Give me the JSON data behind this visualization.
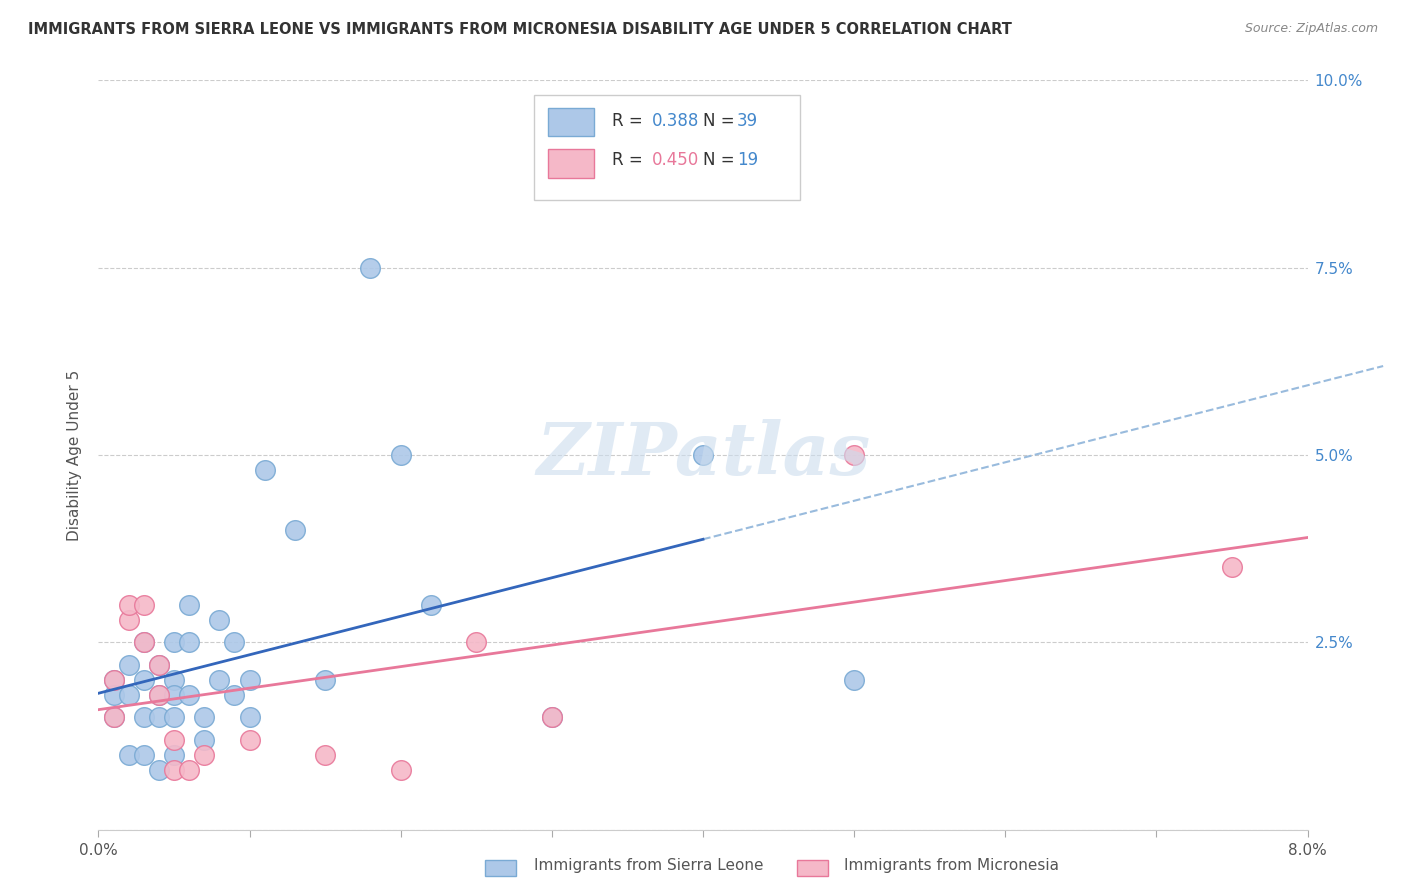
{
  "title": "IMMIGRANTS FROM SIERRA LEONE VS IMMIGRANTS FROM MICRONESIA DISABILITY AGE UNDER 5 CORRELATION CHART",
  "source": "Source: ZipAtlas.com",
  "ylabel": "Disability Age Under 5",
  "xlim": [
    0,
    0.08
  ],
  "ylim": [
    0,
    0.1
  ],
  "xticks": [
    0.0,
    0.01,
    0.02,
    0.03,
    0.04,
    0.05,
    0.06,
    0.07,
    0.08
  ],
  "yticks": [
    0.0,
    0.025,
    0.05,
    0.075,
    0.1
  ],
  "xticklabels": [
    "0.0%",
    "",
    "",
    "",
    "",
    "",
    "",
    "",
    "8.0%"
  ],
  "yticklabels": [
    "",
    "2.5%",
    "5.0%",
    "7.5%",
    "10.0%"
  ],
  "sierra_leone_color": "#adc8e8",
  "sierra_leone_edge": "#7aaad4",
  "micronesia_color": "#f5b8c8",
  "micronesia_edge": "#e8789a",
  "sierra_leone_line_color": "#3366bb",
  "micronesia_line_color": "#e8789a",
  "dashed_color": "#99bbdd",
  "legend_r1": "R = 0.388",
  "legend_n1": "N = 39",
  "legend_r2": "R = 0.450",
  "legend_n2": "N = 19",
  "watermark": "ZIPatlas",
  "sierra_leone_x": [
    0.001,
    0.001,
    0.001,
    0.002,
    0.002,
    0.002,
    0.003,
    0.003,
    0.003,
    0.003,
    0.004,
    0.004,
    0.004,
    0.004,
    0.005,
    0.005,
    0.005,
    0.005,
    0.005,
    0.006,
    0.006,
    0.006,
    0.007,
    0.007,
    0.008,
    0.008,
    0.009,
    0.009,
    0.01,
    0.01,
    0.011,
    0.013,
    0.015,
    0.018,
    0.02,
    0.022,
    0.03,
    0.04,
    0.05
  ],
  "sierra_leone_y": [
    0.02,
    0.018,
    0.015,
    0.022,
    0.018,
    0.01,
    0.025,
    0.02,
    0.015,
    0.01,
    0.022,
    0.018,
    0.015,
    0.008,
    0.025,
    0.02,
    0.018,
    0.015,
    0.01,
    0.03,
    0.025,
    0.018,
    0.015,
    0.012,
    0.028,
    0.02,
    0.025,
    0.018,
    0.02,
    0.015,
    0.048,
    0.04,
    0.02,
    0.075,
    0.05,
    0.03,
    0.015,
    0.05,
    0.02
  ],
  "micronesia_x": [
    0.001,
    0.001,
    0.002,
    0.002,
    0.003,
    0.003,
    0.004,
    0.004,
    0.005,
    0.005,
    0.006,
    0.007,
    0.01,
    0.015,
    0.02,
    0.025,
    0.03,
    0.05,
    0.075
  ],
  "micronesia_y": [
    0.02,
    0.015,
    0.028,
    0.03,
    0.03,
    0.025,
    0.022,
    0.018,
    0.012,
    0.008,
    0.008,
    0.01,
    0.012,
    0.01,
    0.008,
    0.025,
    0.015,
    0.05,
    0.035
  ],
  "background_color": "#ffffff",
  "grid_color": "#cccccc"
}
